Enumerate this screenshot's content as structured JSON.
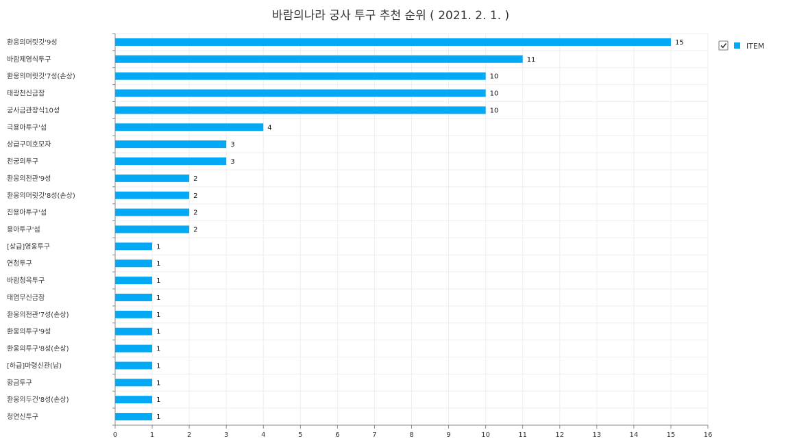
{
  "chart_data": {
    "type": "bar",
    "orientation": "horizontal",
    "title": "바람의나라 궁사 투구 추천 순위 ( 2021. 2. 1. )",
    "categories": [
      "환웅의머릿깃'9성",
      "바람제영식투구",
      "환웅의머릿깃'7성(손상)",
      "태광천신금잠",
      "궁사금관장식10성",
      "극용아투구'섬",
      "상급구미호모자",
      "천궁의투구",
      "환웅의천관'9성",
      "환웅의머릿깃'8성(손상)",
      "진용아투구'섬",
      "용아투구'섬",
      "[상급]영웅투구",
      "연청투구",
      "바람청옥투구",
      "태염무신금잠",
      "환웅의천관'7성(손상)",
      "환웅의투구'9성",
      "환웅의투구'8성(손상)",
      "[하급]마령신관(남)",
      "황금투구",
      "환웅의두건'8성(손상)",
      "청연신투구"
    ],
    "series": [
      {
        "name": "ITEM",
        "color": "#03a9f4",
        "values": [
          15,
          11,
          10,
          10,
          10,
          4,
          3,
          3,
          2,
          2,
          2,
          2,
          1,
          1,
          1,
          1,
          1,
          1,
          1,
          1,
          1,
          1,
          1
        ]
      }
    ],
    "xlim": [
      0,
      16
    ],
    "xticks": [
      0,
      1,
      2,
      3,
      4,
      5,
      6,
      7,
      8,
      9,
      10,
      11,
      12,
      13,
      14,
      15,
      16
    ],
    "xlabel": "",
    "ylabel": "",
    "grid": true,
    "data_labels": true,
    "legend": {
      "position": "top-right",
      "checked": true
    }
  }
}
